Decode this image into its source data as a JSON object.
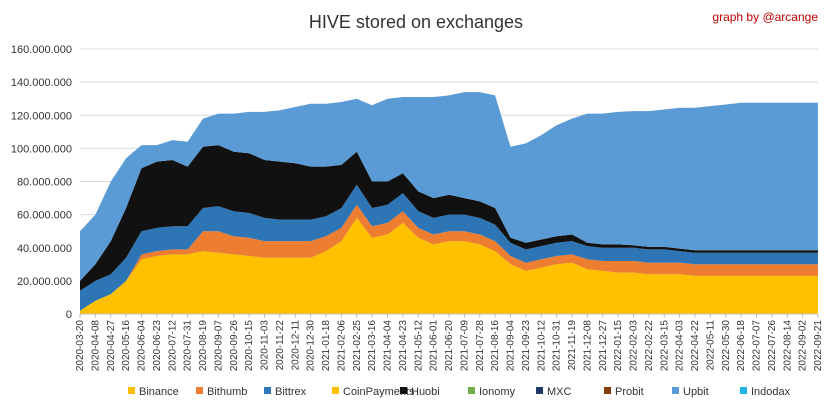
{
  "chart_data": {
    "type": "area",
    "title": "HIVE stored on exchanges",
    "credit": "graph by @arcange",
    "xlabel": "",
    "ylabel": "",
    "ylim": [
      0,
      160000000
    ],
    "y_ticks": [
      "0",
      "20.000.000",
      "40.000.000",
      "60.000.000",
      "80.000.000",
      "100.000.000",
      "120.000.000",
      "140.000.000",
      "160.000.000"
    ],
    "y_tick_values": [
      0,
      20000000,
      40000000,
      60000000,
      80000000,
      100000000,
      120000000,
      140000000,
      160000000
    ],
    "x_ticks": [
      "2020-03-20",
      "2020-04-08",
      "2020-04-27",
      "2020-05-16",
      "2020-06-04",
      "2020-06-23",
      "2020-07-12",
      "2020-07-31",
      "2020-08-19",
      "2020-09-07",
      "2020-09-26",
      "2020-10-15",
      "2020-11-03",
      "2020-11-22",
      "2020-12-11",
      "2020-12-30",
      "2021-01-18",
      "2021-02-06",
      "2021-02-25",
      "2021-03-16",
      "2021-04-04",
      "2021-04-23",
      "2021-05-12",
      "2021-06-01",
      "2021-06-20",
      "2021-07-09",
      "2021-07-28",
      "2021-08-16",
      "2021-09-04",
      "2021-09-23",
      "2021-10-12",
      "2021-10-31",
      "2021-11-19",
      "2021-12-08",
      "2021-12-27",
      "2022-01-15",
      "2022-02-03",
      "2022-02-22",
      "2022-03-15",
      "2022-04-03",
      "2022-04-22",
      "2022-05-11",
      "2022-05-30",
      "2022-06-18",
      "2022-07-07",
      "2022-07-26",
      "2022-08-14",
      "2022-09-02",
      "2022-09-21"
    ],
    "grid": "horizontal",
    "legend_position": "bottom",
    "x": [
      "2020-03-20",
      "2020-04-08",
      "2020-04-27",
      "2020-05-16",
      "2020-06-04",
      "2020-06-23",
      "2020-07-12",
      "2020-07-31",
      "2020-08-19",
      "2020-09-07",
      "2020-09-26",
      "2020-10-15",
      "2020-11-03",
      "2020-11-22",
      "2020-12-11",
      "2020-12-30",
      "2021-01-18",
      "2021-02-06",
      "2021-02-25",
      "2021-03-16",
      "2021-04-04",
      "2021-04-23",
      "2021-05-12",
      "2021-06-01",
      "2021-06-20",
      "2021-07-09",
      "2021-07-28",
      "2021-08-16",
      "2021-09-04",
      "2021-09-23",
      "2021-10-12",
      "2021-10-31",
      "2021-11-19",
      "2021-12-08",
      "2021-12-27",
      "2022-01-15",
      "2022-02-03",
      "2022-02-22",
      "2022-03-15",
      "2022-04-03",
      "2022-04-22",
      "2022-05-11",
      "2022-05-30",
      "2022-06-18",
      "2022-07-07",
      "2022-07-26",
      "2022-08-14",
      "2022-09-02",
      "2022-09-21"
    ],
    "series": [
      {
        "name": "Binance",
        "color": "#ffc000",
        "values": [
          2000000,
          8000000,
          12000000,
          20000000,
          33000000,
          35000000,
          36000000,
          36000000,
          38000000,
          37000000,
          36000000,
          35000000,
          34000000,
          34000000,
          34000000,
          34000000,
          38000000,
          44000000,
          58000000,
          46000000,
          48000000,
          55000000,
          46000000,
          42000000,
          44000000,
          44000000,
          42000000,
          38000000,
          30000000,
          26000000,
          28000000,
          30000000,
          31000000,
          27000000,
          26000000,
          25000000,
          25000000,
          24000000,
          24000000,
          24000000,
          23000000,
          23000000,
          23000000,
          23000000,
          23000000,
          23000000,
          23000000,
          23000000,
          23000000
        ]
      },
      {
        "name": "Bithumb",
        "color": "#ed7d31",
        "values": [
          0,
          0,
          0,
          0,
          3000000,
          3000000,
          3000000,
          3000000,
          12000000,
          13000000,
          11000000,
          11000000,
          10000000,
          10000000,
          10000000,
          10000000,
          9000000,
          8000000,
          8000000,
          7000000,
          7000000,
          7000000,
          6000000,
          6000000,
          6000000,
          6000000,
          6000000,
          6000000,
          5000000,
          5000000,
          5000000,
          5000000,
          5000000,
          6000000,
          6000000,
          7000000,
          7000000,
          7000000,
          7000000,
          7000000,
          7000000,
          7000000,
          7000000,
          7000000,
          7000000,
          7000000,
          7000000,
          7000000,
          7000000
        ]
      },
      {
        "name": "Bittrex",
        "color": "#2e75b6",
        "values": [
          12000000,
          12000000,
          12000000,
          14000000,
          14000000,
          14000000,
          14000000,
          14000000,
          14000000,
          15000000,
          15000000,
          15000000,
          14000000,
          13000000,
          13000000,
          13000000,
          12000000,
          12000000,
          12000000,
          11000000,
          11000000,
          11000000,
          10000000,
          10000000,
          10000000,
          10000000,
          10000000,
          10000000,
          8000000,
          8000000,
          8000000,
          8000000,
          8000000,
          8000000,
          8000000,
          8000000,
          8000000,
          8000000,
          8000000,
          7000000,
          7000000,
          7000000,
          7000000,
          7000000,
          7000000,
          7000000,
          7000000,
          7000000,
          7000000
        ]
      },
      {
        "name": "CoinPayments",
        "color": "#ffc000",
        "values": [
          0,
          0,
          0,
          0,
          0,
          0,
          0,
          0,
          0,
          0,
          0,
          0,
          0,
          0,
          0,
          0,
          0,
          0,
          0,
          0,
          0,
          0,
          0,
          0,
          0,
          0,
          0,
          0,
          0,
          0,
          0,
          0,
          0,
          0,
          0,
          0,
          0,
          0,
          0,
          0,
          0,
          0,
          0,
          0,
          0,
          0,
          0,
          0,
          0
        ]
      },
      {
        "name": "Huobi",
        "color": "#111111",
        "values": [
          6000000,
          10000000,
          20000000,
          30000000,
          38000000,
          40000000,
          40000000,
          36000000,
          37000000,
          37000000,
          36000000,
          36000000,
          35000000,
          35000000,
          34000000,
          32000000,
          30000000,
          26000000,
          20000000,
          16000000,
          14000000,
          12000000,
          12000000,
          12000000,
          12000000,
          10000000,
          10000000,
          10000000,
          3000000,
          4000000,
          4000000,
          4000000,
          4000000,
          2000000,
          2000000,
          2000000,
          1500000,
          1500000,
          1500000,
          1500000,
          1500000,
          1500000,
          1500000,
          1500000,
          1500000,
          1500000,
          1500000,
          1500000,
          1500000
        ]
      },
      {
        "name": "Ionomy",
        "color": "#70ad47",
        "values": [
          0,
          0,
          0,
          0,
          0,
          0,
          0,
          0,
          0,
          0,
          0,
          0,
          0,
          0,
          0,
          0,
          0,
          0,
          0,
          0,
          0,
          0,
          0,
          0,
          0,
          0,
          0,
          0,
          0,
          0,
          0,
          0,
          0,
          0,
          0,
          0,
          0,
          0,
          0,
          0,
          0,
          0,
          0,
          0,
          0,
          0,
          0,
          0,
          0
        ]
      },
      {
        "name": "MXC",
        "color": "#203864",
        "values": [
          0,
          0,
          0,
          0,
          0,
          0,
          0,
          0,
          0,
          0,
          0,
          0,
          0,
          0,
          0,
          0,
          0,
          0,
          0,
          0,
          0,
          0,
          0,
          0,
          0,
          0,
          0,
          0,
          0,
          0,
          0,
          0,
          0,
          0,
          0,
          0,
          0,
          0,
          0,
          0,
          0,
          0,
          0,
          0,
          0,
          0,
          0,
          0,
          0
        ]
      },
      {
        "name": "Probit",
        "color": "#843c0c",
        "values": [
          0,
          0,
          0,
          0,
          0,
          0,
          0,
          0,
          0,
          0,
          0,
          0,
          0,
          0,
          0,
          0,
          0,
          0,
          0,
          0,
          0,
          0,
          0,
          0,
          0,
          0,
          0,
          0,
          0,
          0,
          0,
          0,
          0,
          0,
          0,
          0,
          0,
          0,
          0,
          0,
          0,
          0,
          0,
          0,
          0,
          0,
          0,
          0,
          0
        ]
      },
      {
        "name": "Upbit",
        "color": "#5b9bd5",
        "values": [
          30000000,
          30000000,
          36000000,
          30000000,
          14000000,
          10000000,
          12000000,
          15000000,
          17000000,
          19000000,
          23000000,
          25000000,
          29000000,
          31000000,
          34000000,
          38000000,
          38000000,
          38000000,
          32000000,
          46000000,
          50000000,
          46000000,
          57000000,
          61000000,
          60000000,
          64000000,
          66000000,
          68000000,
          55000000,
          60000000,
          63000000,
          67000000,
          70000000,
          78000000,
          79000000,
          80000000,
          81000000,
          82000000,
          83000000,
          85000000,
          86000000,
          87000000,
          88000000,
          89000000,
          89000000,
          89000000,
          89000000,
          89000000,
          89000000
        ]
      },
      {
        "name": "Indodax",
        "color": "#1fb3e8",
        "values": [
          0,
          0,
          0,
          0,
          0,
          0,
          0,
          0,
          0,
          0,
          0,
          0,
          0,
          0,
          0,
          0,
          0,
          0,
          0,
          0,
          0,
          0,
          0,
          0,
          0,
          0,
          0,
          0,
          0,
          0,
          0,
          0,
          0,
          0,
          0,
          0,
          0,
          0,
          0,
          0,
          0,
          0,
          0,
          0,
          0,
          0,
          0,
          0,
          0
        ]
      }
    ]
  }
}
